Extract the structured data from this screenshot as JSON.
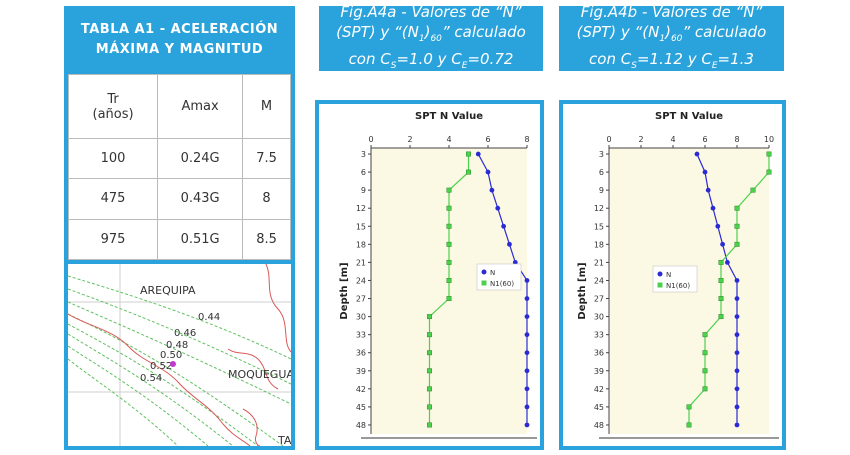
{
  "table": {
    "title_line1": "TABLA A1 - ACELERACIÓN",
    "title_line2": "MÁXIMA Y MAGNITUD",
    "headers": [
      "Tr (años)",
      "Amax",
      "M"
    ],
    "header_tr_line1": "Tr",
    "header_tr_line2": "(años)",
    "rows": [
      [
        "100",
        "0.24G",
        "7.5"
      ],
      [
        "475",
        "0.43G",
        "8"
      ],
      [
        "975",
        "0.51G",
        "8.5"
      ]
    ]
  },
  "map": {
    "city1": "AREQUIPA",
    "city2": "MOQUEGUA",
    "partial_label": "TA",
    "contours": [
      "0.44",
      "0.46",
      "0.48",
      "0.50",
      "0.52",
      "0.54"
    ]
  },
  "fig_a": {
    "line1": "Fig.A4a - Valores de “N”",
    "line2_pre": "(SPT) y “(N",
    "line2_sub1": "1",
    "line2_mid": ")",
    "line2_sub2": "60",
    "line2_post": "” calculado",
    "line3_pre": "con C",
    "line3_sub1": "S",
    "line3_mid": "=1.0 y C",
    "line3_sub2": "E",
    "line3_post": "=0.72"
  },
  "fig_b": {
    "line1": "Fig.A4b - Valores de “N”",
    "line2_pre": "(SPT) y “(N",
    "line2_sub1": "1",
    "line2_mid": ")",
    "line2_sub2": "60",
    "line2_post": "” calculado",
    "line3_pre": "con C",
    "line3_sub1": "S",
    "line3_mid": "=1.12 y C",
    "line3_sub2": "E",
    "line3_post": "=1.3"
  },
  "colors": {
    "accent": "#2aa3dc",
    "series_n": "#2b2bd6",
    "series_n160": "#4cd14c",
    "plot_bg": "#fbf8e3"
  },
  "chart_data": [
    {
      "type": "line",
      "title": "SPT N Value",
      "ylabel": "Depth [m]",
      "xlim": [
        0,
        8
      ],
      "xticks": [
        0,
        2,
        4,
        6,
        8
      ],
      "ylim": [
        49.5,
        2
      ],
      "yticks": [
        3,
        6,
        9,
        12,
        15,
        18,
        21,
        24,
        27,
        30,
        33,
        36,
        39,
        42,
        45,
        48
      ],
      "legend": "center-right",
      "series": [
        {
          "name": "N",
          "x": [
            5.5,
            6,
            6.2,
            6.5,
            6.8,
            7.1,
            7.4,
            8,
            8,
            8,
            8,
            8,
            8,
            8,
            8,
            8
          ],
          "y": [
            3,
            6,
            9,
            12,
            15,
            18,
            21,
            24,
            27,
            30,
            33,
            36,
            39,
            42,
            45,
            48
          ]
        },
        {
          "name": "N1(60)",
          "x": [
            5,
            5,
            4,
            4,
            4,
            4,
            4,
            4,
            4,
            3,
            3,
            3,
            3,
            3,
            3,
            3
          ],
          "y": [
            3,
            6,
            9,
            12,
            15,
            18,
            21,
            24,
            27,
            30,
            33,
            36,
            39,
            42,
            45,
            48
          ]
        }
      ]
    },
    {
      "type": "line",
      "title": "SPT N Value",
      "ylabel": "Depth [m]",
      "xlim": [
        0,
        10
      ],
      "xticks": [
        0,
        2,
        4,
        6,
        8,
        10
      ],
      "ylim": [
        49.5,
        2
      ],
      "yticks": [
        3,
        6,
        9,
        12,
        15,
        18,
        21,
        24,
        27,
        30,
        33,
        36,
        39,
        42,
        45,
        48
      ],
      "legend": "center-left",
      "series": [
        {
          "name": "N",
          "x": [
            5.5,
            6,
            6.2,
            6.5,
            6.8,
            7.1,
            7.4,
            8,
            8,
            8,
            8,
            8,
            8,
            8,
            8,
            8
          ],
          "y": [
            3,
            6,
            9,
            12,
            15,
            18,
            21,
            24,
            27,
            30,
            33,
            36,
            39,
            42,
            45,
            48
          ]
        },
        {
          "name": "N1(60)",
          "x": [
            10,
            10,
            9,
            8,
            8,
            8,
            7,
            7,
            7,
            7,
            6,
            6,
            6,
            6,
            5,
            5
          ],
          "y": [
            3,
            6,
            9,
            12,
            15,
            18,
            21,
            24,
            27,
            30,
            33,
            36,
            39,
            42,
            45,
            48
          ]
        }
      ]
    }
  ]
}
